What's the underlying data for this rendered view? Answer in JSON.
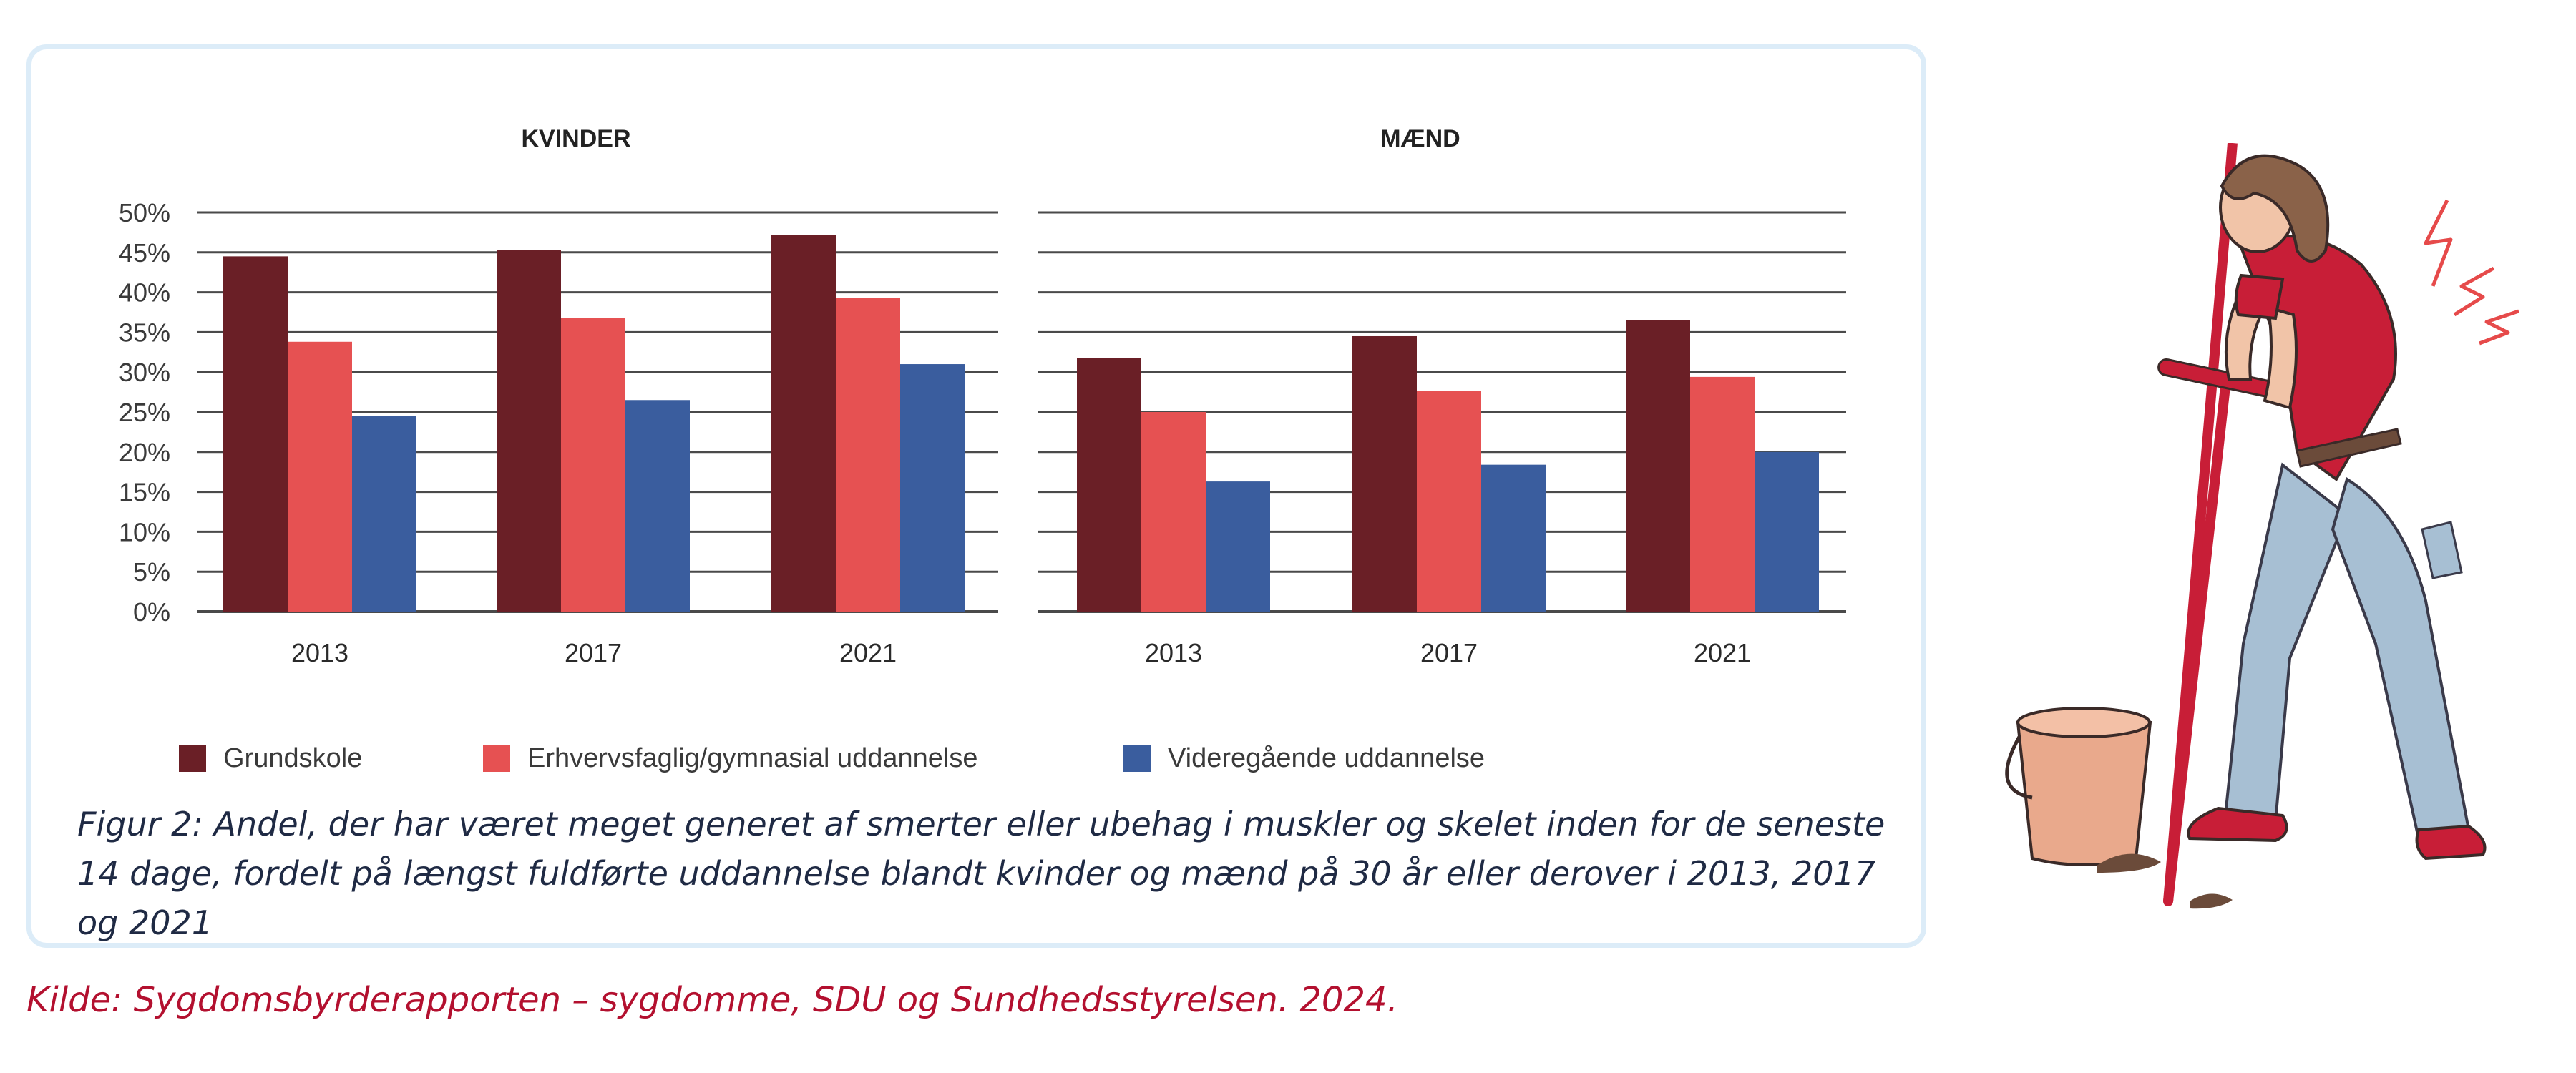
{
  "chart_data": [
    {
      "type": "bar",
      "title": "KVINDER",
      "categories": [
        "2013",
        "2017",
        "2021"
      ],
      "series": [
        {
          "name": "Grundskole",
          "values": [
            44.5,
            45.3,
            47.2
          ]
        },
        {
          "name": "Erhvervsfaglig/gymnasial uddannelse",
          "values": [
            33.8,
            36.8,
            39.3
          ]
        },
        {
          "name": "Videregående uddannelse",
          "values": [
            24.5,
            26.5,
            31.0
          ]
        }
      ],
      "ylim": [
        0,
        50
      ],
      "yticks": [
        "0%",
        "5%",
        "10%",
        "15%",
        "20%",
        "25%",
        "30%",
        "35%",
        "40%",
        "45%",
        "50%"
      ],
      "grid": true
    },
    {
      "type": "bar",
      "title": "MÆND",
      "categories": [
        "2013",
        "2017",
        "2021"
      ],
      "series": [
        {
          "name": "Grundskole",
          "values": [
            31.8,
            34.5,
            36.5
          ]
        },
        {
          "name": "Erhvervsfaglig/gymnasial uddannelse",
          "values": [
            25.0,
            27.6,
            29.4
          ]
        },
        {
          "name": "Videregående uddannelse",
          "values": [
            16.3,
            18.4,
            20.0
          ]
        }
      ],
      "ylim": [
        0,
        50
      ],
      "grid": true
    }
  ],
  "legend": {
    "placement": "bottom",
    "items": [
      {
        "label": "Grundskole",
        "color": "#6a1f26"
      },
      {
        "label": "Erhvervsfaglig/gymnasial uddannelse",
        "color": "#e65152"
      },
      {
        "label": "Videregående uddannelse",
        "color": "#3a5d9e"
      }
    ]
  },
  "caption": "Figur 2: Andel, der har været meget generet af smerter eller ubehag i muskler og skelet inden for de seneste 14 dage, fordelt på længst fuldførte uddannelse blandt kvinder og mænd på 30 år eller derover i 2013, 2017 og 2021",
  "source": "Kilde: Sygdomsbyrderapporten – sygdomme, SDU og Sundhedsstyrelsen. 2024.",
  "colors": {
    "card_border": "#dcecf8",
    "grid": "#4a4a4a",
    "caption_text": "#1f2a44",
    "source_text": "#b3102f"
  },
  "illustration": {
    "icon": "woman-digging-back-pain-icon"
  }
}
